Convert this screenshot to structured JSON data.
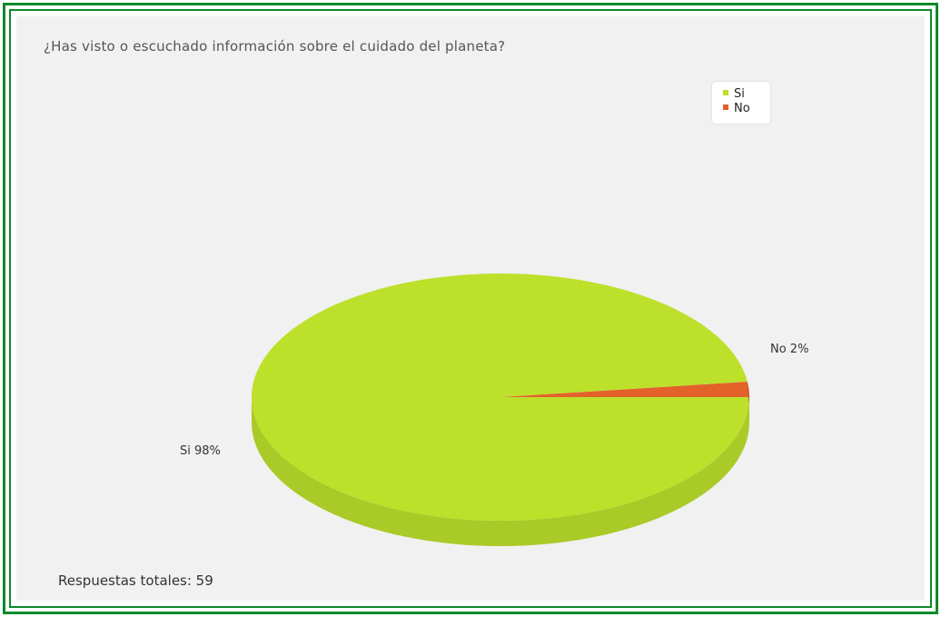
{
  "chart_data": {
    "type": "pie",
    "title": "¿Has visto o escuchado información sobre el cuidado del planeta?",
    "slices": [
      {
        "label": "Si",
        "value": 98,
        "percent_label": "Si  98%",
        "color": "#bde02b"
      },
      {
        "label": "No",
        "value": 2,
        "percent_label": "No  2%",
        "color": "#e2622a"
      }
    ],
    "legend_position": "top-right",
    "footer": "Respuestas totales: 59"
  }
}
